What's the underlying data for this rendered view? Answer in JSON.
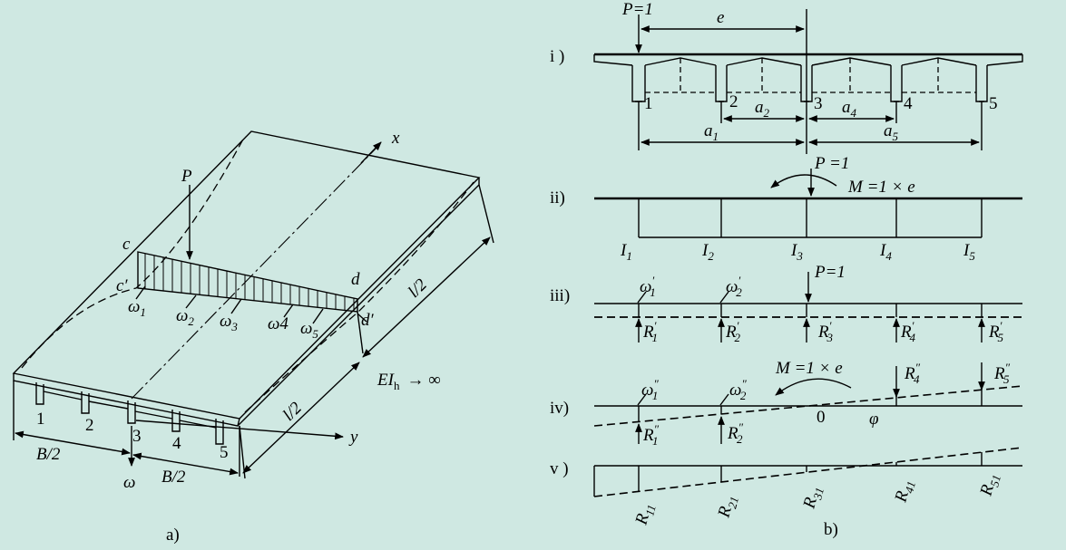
{
  "figure_a": {
    "caption": "a)",
    "load": "P",
    "axis_x": "x",
    "axis_y": "y",
    "omega": "ω",
    "corner_c": "c",
    "corner_c_prime": "c′",
    "corner_d": "d",
    "corner_d_prime": "d′",
    "half_length_top": "l/2",
    "half_length_bottom": "l/2",
    "half_width_left": "B/2",
    "half_width_right": "B/2",
    "stiffness": "EI",
    "stiffness_sub": "h",
    "stiffness_tail": "→ ∞",
    "beams": [
      "1",
      "2",
      "3",
      "4",
      "5"
    ],
    "deflections": [
      {
        "base": "ω",
        "sub": "1"
      },
      {
        "base": "ω",
        "sub": "2"
      },
      {
        "base": "ω",
        "sub": "3"
      },
      {
        "base": "ω4",
        "sub": ""
      },
      {
        "base": "ω",
        "sub": "5"
      }
    ]
  },
  "figure_b": {
    "caption": "b)",
    "rows": [
      "i )",
      "ii)",
      "iii)",
      "iv)",
      "v )"
    ],
    "row_i": {
      "load": "P=1",
      "eccentricity": "e",
      "beams": [
        "1",
        "2",
        "3",
        "4",
        "5"
      ],
      "spacing": [
        {
          "base": "a",
          "sub": "1"
        },
        {
          "base": "a",
          "sub": "2"
        },
        {
          "base": "a",
          "sub": "4"
        },
        {
          "base": "a",
          "sub": "5"
        }
      ]
    },
    "row_ii": {
      "load": "P =1",
      "moment": "M =1 × e",
      "inertias": [
        {
          "base": "I",
          "sub": "1"
        },
        {
          "base": "I",
          "sub": "2"
        },
        {
          "base": "I",
          "sub": "3"
        },
        {
          "base": "I",
          "sub": "4"
        },
        {
          "base": "I",
          "sub": "5"
        }
      ]
    },
    "row_iii": {
      "load": "P=1",
      "omegas": [
        {
          "base": "ω",
          "sup": "′",
          "sub": "1"
        },
        {
          "base": "ω",
          "sup": "′",
          "sub": "2"
        }
      ],
      "reactions": [
        {
          "base": "R",
          "sup": "′",
          "sub": "1"
        },
        {
          "base": "R",
          "sup": "′",
          "sub": "2"
        },
        {
          "base": "R",
          "sup": "′",
          "sub": "3"
        },
        {
          "base": "R",
          "sup": "′",
          "sub": "4"
        },
        {
          "base": "R",
          "sup": "′",
          "sub": "5"
        }
      ]
    },
    "row_iv": {
      "moment": "M =1 × e",
      "zero": "0",
      "angle": "φ",
      "omegas": [
        {
          "base": "ω",
          "sup": "″",
          "sub": "1"
        },
        {
          "base": "ω",
          "sup": "″",
          "sub": "2"
        }
      ],
      "reactions": [
        {
          "base": "R",
          "sup": "″",
          "sub": "1"
        },
        {
          "base": "R",
          "sup": "″",
          "sub": "2"
        },
        {
          "base": "R",
          "sup": "″",
          "sub": "4"
        },
        {
          "base": "R",
          "sup": "″",
          "sub": "5"
        }
      ]
    },
    "row_v": {
      "influence": [
        {
          "base": "R",
          "sub": "11"
        },
        {
          "base": "R",
          "sub": "21"
        },
        {
          "base": "R",
          "sub": "31"
        },
        {
          "base": "R",
          "sub": "41"
        },
        {
          "base": "R",
          "sub": "51"
        }
      ]
    }
  }
}
